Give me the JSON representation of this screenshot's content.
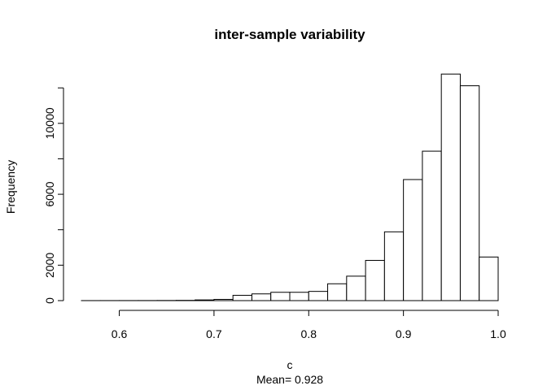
{
  "chart_data": {
    "type": "bar",
    "title": "inter-sample variability",
    "xlabel": "c",
    "sublabel": "Mean= 0.928",
    "ylabel": "Frequency",
    "bin_edges": [
      0.56,
      0.58,
      0.6,
      0.62,
      0.64,
      0.66,
      0.68,
      0.7,
      0.72,
      0.74,
      0.76,
      0.78,
      0.8,
      0.82,
      0.84,
      0.86,
      0.88,
      0.9,
      0.92,
      0.94,
      0.96,
      0.98,
      1.0
    ],
    "values": [
      2,
      3,
      4,
      5,
      8,
      15,
      40,
      70,
      300,
      380,
      470,
      470,
      520,
      950,
      1380,
      2270,
      3880,
      6830,
      8430,
      12780,
      12120,
      2460
    ],
    "xlim": [
      0.56,
      1.0
    ],
    "ylim": [
      0,
      12100
    ],
    "xticks": [
      0.6,
      0.7,
      0.8,
      0.9,
      1.0
    ],
    "xtick_labels": [
      "0.6",
      "0.7",
      "0.8",
      "0.9",
      "1.0"
    ],
    "yticks": [
      0,
      2000,
      6000,
      10000
    ],
    "ytick_labels": [
      "0",
      "2000",
      "6000",
      "10000"
    ],
    "yaxis_minor_ticks": [
      4000,
      8000,
      12000
    ]
  }
}
